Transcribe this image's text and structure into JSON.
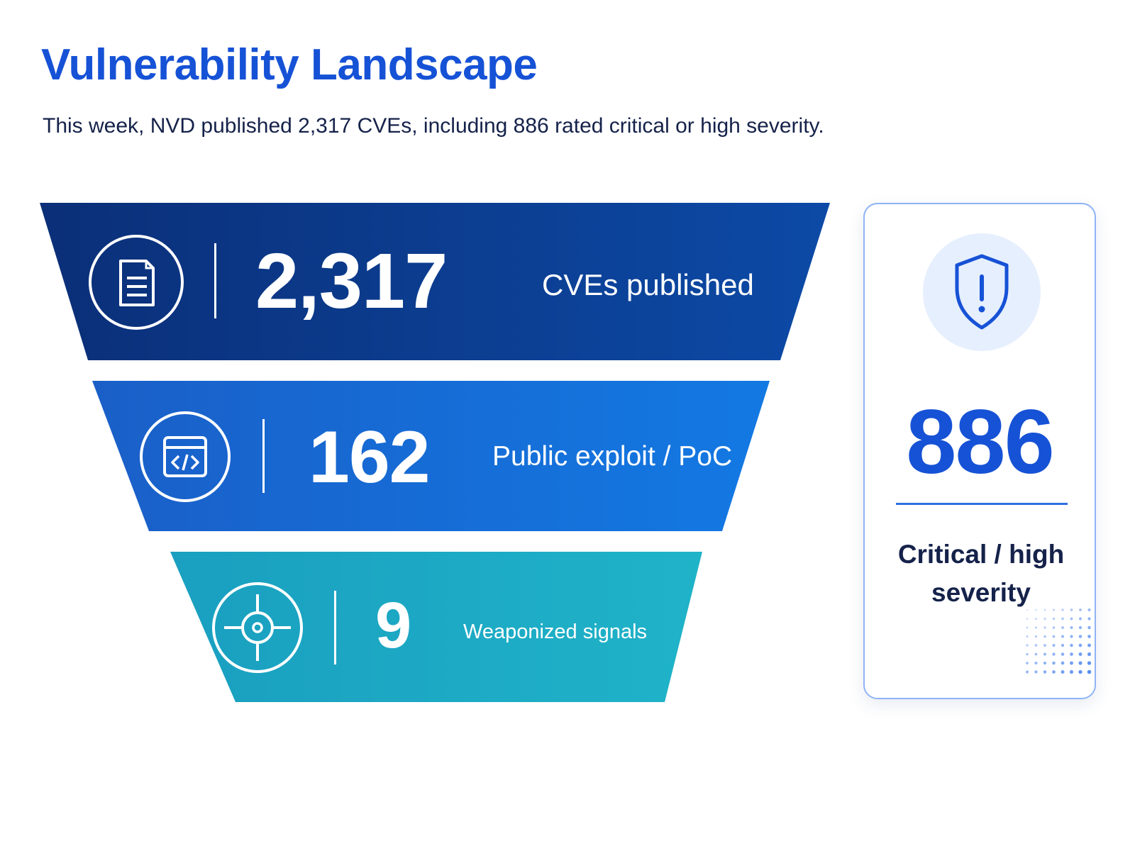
{
  "title": "Vulnerability Landscape",
  "subtitle": "This week, NVD published 2,317 CVEs, including 886 rated critical or high severity.",
  "funnel": [
    {
      "value": "2,317",
      "label": "CVEs published",
      "icon": "document-icon",
      "colors": [
        "#0b2f78",
        "#0c4aa6"
      ]
    },
    {
      "value": "162",
      "label": "Public exploit / PoC",
      "icon": "code-window-icon",
      "colors": [
        "#1a5fc8",
        "#1379e3"
      ]
    },
    {
      "value": "9",
      "label": "Weaponized signals",
      "icon": "crosshair-icon",
      "colors": [
        "#1a9fc0",
        "#1fb3c8"
      ]
    }
  ],
  "card": {
    "value": "886",
    "label": "Critical / high severity",
    "icon": "shield-alert-icon"
  },
  "colors": {
    "accent": "#1652d6",
    "text_dark": "#15224a",
    "card_border": "#8fb3f5",
    "badge_bg": "#e6effd"
  }
}
